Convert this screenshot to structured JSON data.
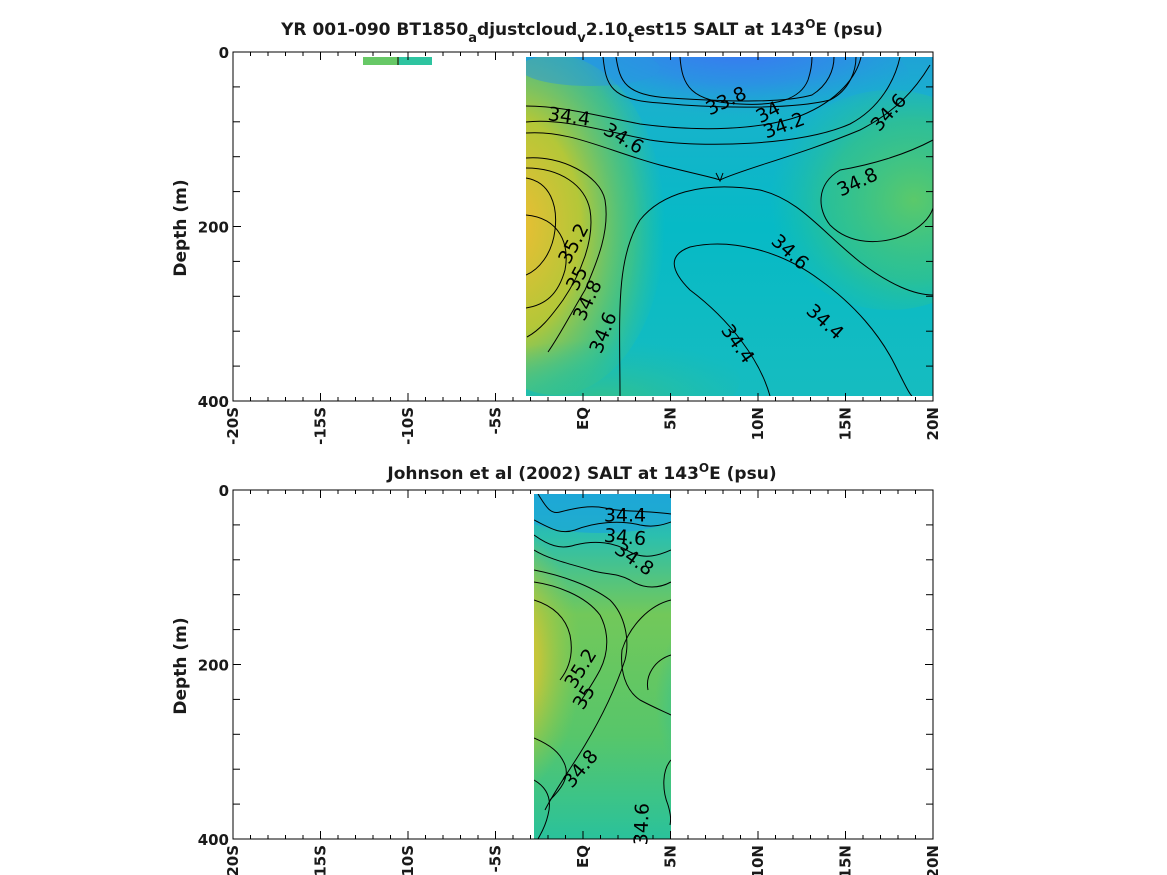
{
  "chart_data": [
    {
      "type": "contour",
      "title_parts": [
        "YR 001-090 BT1850",
        "a",
        "djustcloud",
        "v",
        "2.10",
        "t",
        "est15 SALT at 143",
        "O",
        "E (psu)"
      ],
      "ylabel": "Depth (m)",
      "xlim": [
        -20,
        20
      ],
      "ylim": [
        400,
        0
      ],
      "y_ticks": [
        0,
        200,
        400
      ],
      "x_ticks": [
        -20,
        -15,
        -10,
        -5,
        0,
        5,
        10,
        15,
        20
      ],
      "x_tick_labels": [
        "-20S",
        "-15S",
        "-10S",
        "-5S",
        "EQ",
        "5N",
        "10N",
        "15N",
        "20N"
      ],
      "field_extent_lat": [
        -3.5,
        20
      ],
      "field_extent_depth": [
        5,
        395
      ],
      "contour_labels": [
        {
          "text": "33.8",
          "lat": 8.2,
          "depth": 57,
          "angle": -25
        },
        {
          "text": "34",
          "lat": 10.6,
          "depth": 70,
          "angle": -28
        },
        {
          "text": "34.2",
          "lat": 11.5,
          "depth": 85,
          "angle": -20
        },
        {
          "text": "34.4",
          "lat": -0.8,
          "depth": 75,
          "angle": 8
        },
        {
          "text": "34.6",
          "lat": 2.3,
          "depth": 100,
          "angle": 30
        },
        {
          "text": "34.6",
          "lat": 17.5,
          "depth": 70,
          "angle": -48
        },
        {
          "text": "34.8",
          "lat": 15.7,
          "depth": 150,
          "angle": -25
        },
        {
          "text": "34.6",
          "lat": 11.8,
          "depth": 230,
          "angle": 42
        },
        {
          "text": "34.4",
          "lat": 13.8,
          "depth": 310,
          "angle": 42
        },
        {
          "text": "34.4",
          "lat": 8.8,
          "depth": 335,
          "angle": 55
        },
        {
          "text": "35.2",
          "lat": -0.5,
          "depth": 220,
          "angle": -62
        },
        {
          "text": "35",
          "lat": -0.3,
          "depth": 260,
          "angle": -62
        },
        {
          "text": "34.8",
          "lat": 0.3,
          "depth": 285,
          "angle": -65
        },
        {
          "text": "34.6",
          "lat": 1.2,
          "depth": 322,
          "angle": -68
        }
      ]
    },
    {
      "type": "contour",
      "title_parts": [
        "Johnson et al (2002) SALT at 143",
        "O",
        "E (psu)"
      ],
      "ylabel": "Depth (m)",
      "xlim": [
        -20,
        20
      ],
      "ylim": [
        400,
        0
      ],
      "y_ticks": [
        0,
        200,
        400
      ],
      "x_ticks": [
        -20,
        -15,
        -10,
        -5,
        0,
        5,
        10,
        15,
        20
      ],
      "x_tick_labels": [
        "-20S",
        "-15S",
        "-10S",
        "-5S",
        "EQ",
        "5N",
        "10N",
        "15N",
        "20N"
      ],
      "field_extent_lat": [
        -2.8,
        5
      ],
      "field_extent_depth": [
        5,
        395
      ],
      "contour_labels": [
        {
          "text": "34.4",
          "lat": 2.4,
          "depth": 30,
          "angle": 0
        },
        {
          "text": "34.6",
          "lat": 2.4,
          "depth": 55,
          "angle": 5
        },
        {
          "text": "34.8",
          "lat": 2.9,
          "depth": 80,
          "angle": 35
        },
        {
          "text": "35.2",
          "lat": -0.1,
          "depth": 205,
          "angle": -58
        },
        {
          "text": "35",
          "lat": 0.1,
          "depth": 238,
          "angle": -58
        },
        {
          "text": "34.8",
          "lat": -0.1,
          "depth": 320,
          "angle": -50
        },
        {
          "text": "34.6",
          "lat": 3.4,
          "depth": 383,
          "angle": -88
        }
      ]
    }
  ]
}
